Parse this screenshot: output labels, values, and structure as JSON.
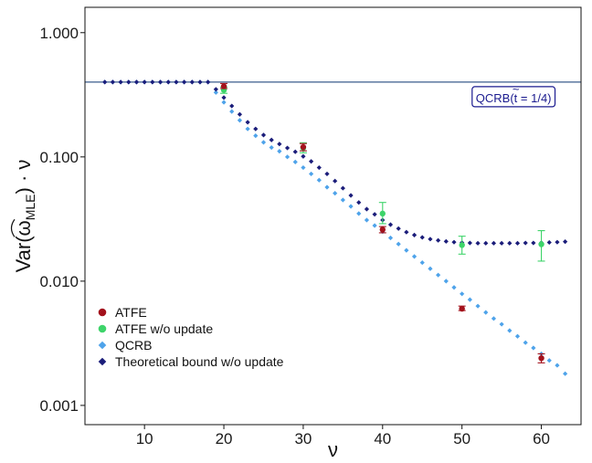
{
  "chart_data": {
    "type": "scatter",
    "xlabel": "ν",
    "ylabel": {
      "prefix": "Var",
      "omega": "ω",
      "subscript": "MLE",
      "suffix": " · ν"
    },
    "xlim": [
      2.5,
      65
    ],
    "ylim": [
      0.0007,
      1.6
    ],
    "yscale": "log",
    "x_ticks": [
      {
        "value": 10,
        "label": "10"
      },
      {
        "value": 20,
        "label": "20"
      },
      {
        "value": 30,
        "label": "30"
      },
      {
        "value": 40,
        "label": "40"
      },
      {
        "value": 50,
        "label": "50"
      },
      {
        "value": 60,
        "label": "60"
      }
    ],
    "y_ticks": [
      {
        "value": 1.0,
        "label": "1.000"
      },
      {
        "value": 0.1,
        "label": "0.100"
      },
      {
        "value": 0.01,
        "label": "0.010"
      },
      {
        "value": 0.001,
        "label": "0.001"
      }
    ],
    "grid": false,
    "legend_position": "bottom-left",
    "hline": {
      "y": 0.4,
      "color": "#3a5b8c"
    },
    "annotation": {
      "prefix": "QCRB(",
      "t": "t",
      "tilde": "~",
      "suffix": " = 1/4)",
      "x": 56.5,
      "y": 0.3
    },
    "series": [
      {
        "name": "ATFE",
        "marker": "circle",
        "color": "#a3121c",
        "points": [
          {
            "x": 20,
            "y": 0.37,
            "err": [
              0.355,
              0.39
            ]
          },
          {
            "x": 30,
            "y": 0.12,
            "err": [
              0.112,
              0.128
            ]
          },
          {
            "x": 40,
            "y": 0.026,
            "err": [
              0.0245,
              0.0275
            ]
          },
          {
            "x": 50,
            "y": 0.006,
            "err": [
              0.0058,
              0.0063
            ]
          },
          {
            "x": 60,
            "y": 0.0024,
            "err": [
              0.0022,
              0.0026
            ]
          }
        ]
      },
      {
        "name": "ATFE w/o update",
        "marker": "circle",
        "color": "#3ed46a",
        "points": [
          {
            "x": 20,
            "y": 0.345,
            "err": [
              0.325,
              0.365
            ]
          },
          {
            "x": 30,
            "y": 0.118,
            "err": [
              0.108,
              0.13
            ]
          },
          {
            "x": 40,
            "y": 0.035,
            "err": [
              0.029,
              0.043
            ]
          },
          {
            "x": 50,
            "y": 0.0195,
            "err": [
              0.0165,
              0.023
            ]
          },
          {
            "x": 60,
            "y": 0.0198,
            "err": [
              0.0145,
              0.0255
            ]
          }
        ]
      },
      {
        "name": "QCRB",
        "marker": "diamond",
        "color": "#4ea3ea",
        "points": [
          {
            "x": 5,
            "y": 0.4
          },
          {
            "x": 6,
            "y": 0.4
          },
          {
            "x": 7,
            "y": 0.4
          },
          {
            "x": 8,
            "y": 0.4
          },
          {
            "x": 9,
            "y": 0.4
          },
          {
            "x": 10,
            "y": 0.4
          },
          {
            "x": 11,
            "y": 0.4
          },
          {
            "x": 12,
            "y": 0.4
          },
          {
            "x": 13,
            "y": 0.4
          },
          {
            "x": 14,
            "y": 0.4
          },
          {
            "x": 15,
            "y": 0.4
          },
          {
            "x": 16,
            "y": 0.4
          },
          {
            "x": 17,
            "y": 0.4
          },
          {
            "x": 18,
            "y": 0.4
          },
          {
            "x": 19,
            "y": 0.33
          },
          {
            "x": 20,
            "y": 0.275
          },
          {
            "x": 21,
            "y": 0.232
          },
          {
            "x": 22,
            "y": 0.197
          },
          {
            "x": 23,
            "y": 0.168
          },
          {
            "x": 24,
            "y": 0.148
          },
          {
            "x": 25,
            "y": 0.131
          },
          {
            "x": 26,
            "y": 0.119
          },
          {
            "x": 27,
            "y": 0.111
          },
          {
            "x": 28,
            "y": 0.1
          },
          {
            "x": 29,
            "y": 0.091
          },
          {
            "x": 30,
            "y": 0.082
          },
          {
            "x": 31,
            "y": 0.073
          },
          {
            "x": 32,
            "y": 0.065
          },
          {
            "x": 33,
            "y": 0.057
          },
          {
            "x": 34,
            "y": 0.051
          },
          {
            "x": 35,
            "y": 0.045
          },
          {
            "x": 36,
            "y": 0.04
          },
          {
            "x": 37,
            "y": 0.035
          },
          {
            "x": 38,
            "y": 0.031
          },
          {
            "x": 39,
            "y": 0.028
          },
          {
            "x": 40,
            "y": 0.025
          },
          {
            "x": 41,
            "y": 0.0223
          },
          {
            "x": 42,
            "y": 0.0199
          },
          {
            "x": 43,
            "y": 0.0177
          },
          {
            "x": 44,
            "y": 0.0158
          },
          {
            "x": 45,
            "y": 0.0141
          },
          {
            "x": 46,
            "y": 0.0126
          },
          {
            "x": 47,
            "y": 0.0112
          },
          {
            "x": 48,
            "y": 0.01
          },
          {
            "x": 49,
            "y": 0.0089
          },
          {
            "x": 50,
            "y": 0.0079
          },
          {
            "x": 51,
            "y": 0.0071
          },
          {
            "x": 52,
            "y": 0.0063
          },
          {
            "x": 53,
            "y": 0.0056
          },
          {
            "x": 54,
            "y": 0.005
          },
          {
            "x": 55,
            "y": 0.0045
          },
          {
            "x": 56,
            "y": 0.004
          },
          {
            "x": 57,
            "y": 0.0036
          },
          {
            "x": 58,
            "y": 0.0032
          },
          {
            "x": 59,
            "y": 0.0029
          },
          {
            "x": 60,
            "y": 0.0026
          },
          {
            "x": 61,
            "y": 0.0023
          },
          {
            "x": 62,
            "y": 0.0021
          },
          {
            "x": 63,
            "y": 0.0018
          }
        ]
      },
      {
        "name": "Theoretical bound w/o update",
        "marker": "diamond",
        "color": "#1b1d7a",
        "points": [
          {
            "x": 5,
            "y": 0.4
          },
          {
            "x": 6,
            "y": 0.4
          },
          {
            "x": 7,
            "y": 0.4
          },
          {
            "x": 8,
            "y": 0.4
          },
          {
            "x": 9,
            "y": 0.4
          },
          {
            "x": 10,
            "y": 0.4
          },
          {
            "x": 11,
            "y": 0.4
          },
          {
            "x": 12,
            "y": 0.4
          },
          {
            "x": 13,
            "y": 0.4
          },
          {
            "x": 14,
            "y": 0.4
          },
          {
            "x": 15,
            "y": 0.4
          },
          {
            "x": 16,
            "y": 0.4
          },
          {
            "x": 17,
            "y": 0.4
          },
          {
            "x": 18,
            "y": 0.4
          },
          {
            "x": 19,
            "y": 0.35
          },
          {
            "x": 20,
            "y": 0.3
          },
          {
            "x": 21,
            "y": 0.257
          },
          {
            "x": 22,
            "y": 0.22
          },
          {
            "x": 23,
            "y": 0.19
          },
          {
            "x": 24,
            "y": 0.168
          },
          {
            "x": 25,
            "y": 0.15
          },
          {
            "x": 26,
            "y": 0.137
          },
          {
            "x": 27,
            "y": 0.127
          },
          {
            "x": 28,
            "y": 0.118
          },
          {
            "x": 29,
            "y": 0.11
          },
          {
            "x": 30,
            "y": 0.101
          },
          {
            "x": 31,
            "y": 0.092
          },
          {
            "x": 32,
            "y": 0.082
          },
          {
            "x": 33,
            "y": 0.073
          },
          {
            "x": 34,
            "y": 0.064
          },
          {
            "x": 35,
            "y": 0.056
          },
          {
            "x": 36,
            "y": 0.049
          },
          {
            "x": 37,
            "y": 0.043
          },
          {
            "x": 38,
            "y": 0.038
          },
          {
            "x": 39,
            "y": 0.0345
          },
          {
            "x": 40,
            "y": 0.031
          },
          {
            "x": 41,
            "y": 0.0285
          },
          {
            "x": 42,
            "y": 0.0265
          },
          {
            "x": 43,
            "y": 0.0248
          },
          {
            "x": 44,
            "y": 0.0235
          },
          {
            "x": 45,
            "y": 0.0225
          },
          {
            "x": 46,
            "y": 0.0218
          },
          {
            "x": 47,
            "y": 0.0213
          },
          {
            "x": 48,
            "y": 0.0209
          },
          {
            "x": 49,
            "y": 0.0206
          },
          {
            "x": 50,
            "y": 0.0204
          },
          {
            "x": 51,
            "y": 0.0203
          },
          {
            "x": 52,
            "y": 0.0202
          },
          {
            "x": 53,
            "y": 0.0202
          },
          {
            "x": 54,
            "y": 0.0202
          },
          {
            "x": 55,
            "y": 0.0202
          },
          {
            "x": 56,
            "y": 0.0202
          },
          {
            "x": 57,
            "y": 0.0202
          },
          {
            "x": 58,
            "y": 0.0203
          },
          {
            "x": 59,
            "y": 0.0203
          },
          {
            "x": 60,
            "y": 0.0204
          },
          {
            "x": 61,
            "y": 0.0205
          },
          {
            "x": 62,
            "y": 0.0206
          },
          {
            "x": 63,
            "y": 0.0208
          }
        ]
      }
    ]
  }
}
